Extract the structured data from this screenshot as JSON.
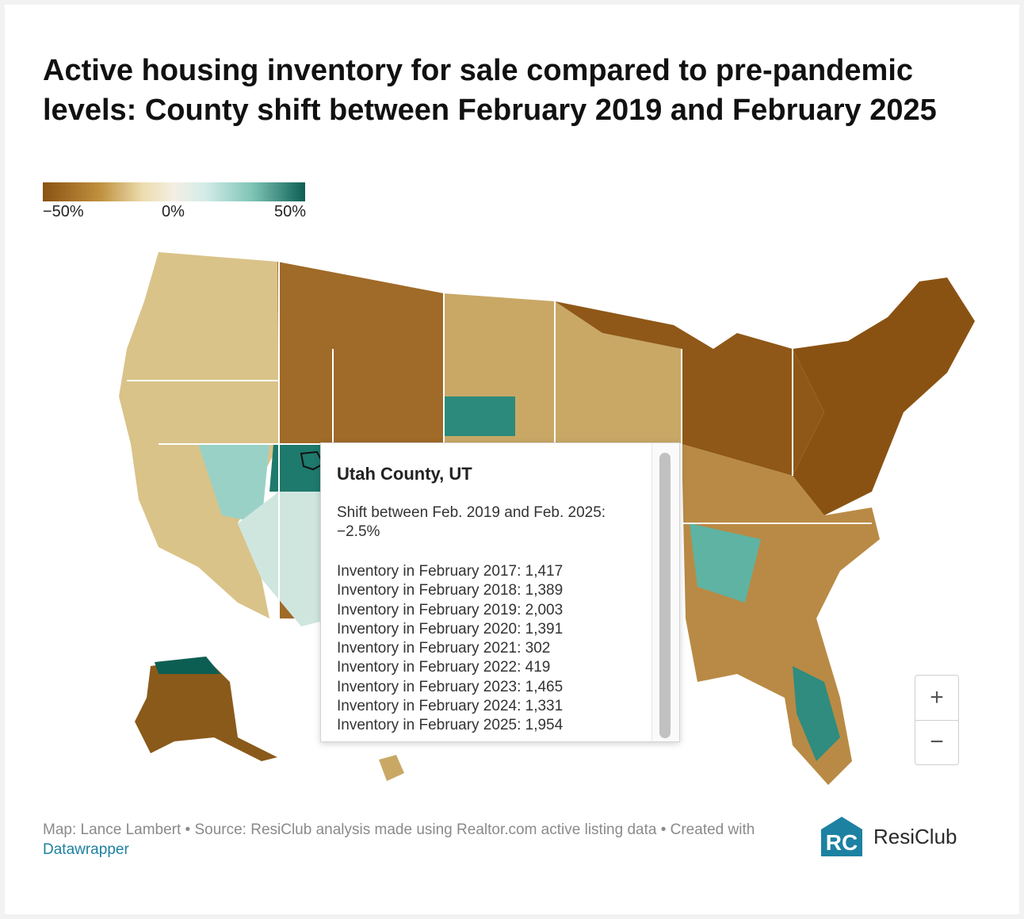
{
  "title": "Active housing inventory for sale compared to pre-pandemic levels: County shift between February 2019 and February 2025",
  "legend": {
    "min_label": "−50%",
    "mid_label": "0%",
    "max_label": "50%",
    "colors": [
      "#8a5212",
      "#c0913f",
      "#ecdcae",
      "#f4efe4",
      "#d3ece8",
      "#7dc4b6",
      "#0c5e53"
    ]
  },
  "tooltip": {
    "county": "Utah County, UT",
    "shift_text": "Shift between Feb. 2019 and Feb. 2025: −2.5%",
    "rows": [
      "Inventory in February 2017: 1,417",
      "Inventory in February 2018: 1,389",
      "Inventory in February 2019: 2,003",
      "Inventory in February 2020: 1,391",
      "Inventory in February 2021: 302",
      "Inventory in February 2022: 419",
      "Inventory in February 2023: 1,465",
      "Inventory in February 2024: 1,331",
      "Inventory in February 2025: 1,954"
    ]
  },
  "zoom": {
    "in_label": "+",
    "out_label": "−"
  },
  "footer": {
    "credit": "Map: Lance Lambert • Source: ResiClub analysis made using Realtor.com active listing data • Created with ",
    "link_text": "Datawrapper"
  },
  "logo": {
    "text": "ResiClub",
    "mark_letters": "RC"
  }
}
